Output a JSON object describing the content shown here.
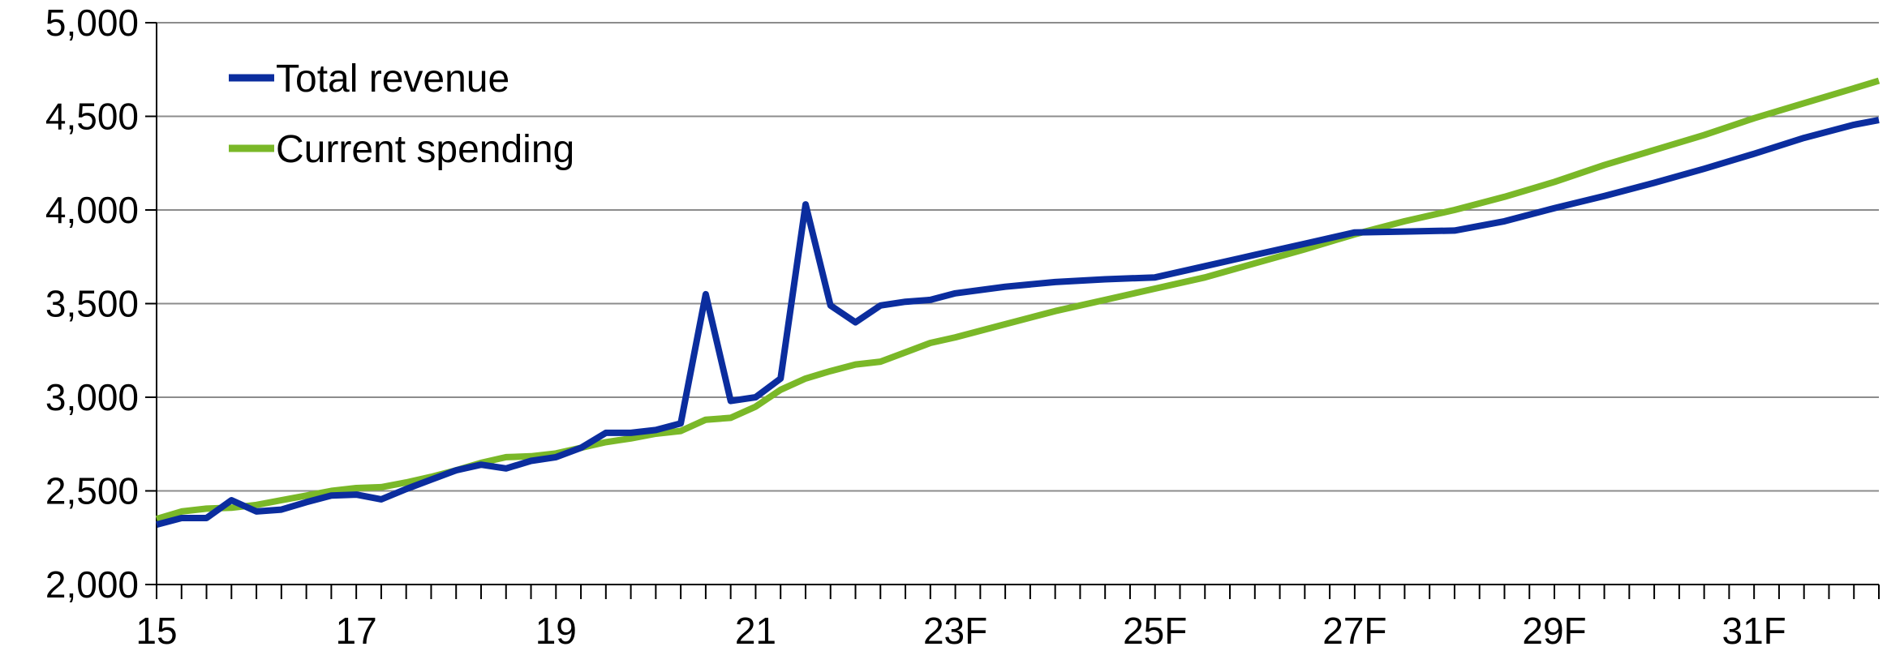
{
  "chart_data": {
    "type": "line",
    "title": "",
    "xlabel": "",
    "ylabel": "",
    "ylim": [
      2000,
      5000
    ],
    "yticks": [
      2000,
      2500,
      3000,
      3500,
      4000,
      4500,
      5000
    ],
    "ytick_labels": [
      "2,000",
      "2,500",
      "3,000",
      "3,500",
      "4,000",
      "4,500",
      "5,000"
    ],
    "xlim": [
      15,
      32.25
    ],
    "xticks": [
      15,
      17,
      19,
      21,
      23,
      25,
      27,
      29,
      31
    ],
    "xtick_labels": [
      "15",
      "17",
      "19",
      "21",
      "23F",
      "25F",
      "27F",
      "29F",
      "31F"
    ],
    "grid": "horizontal",
    "legend_position": "top-left",
    "series": [
      {
        "name": "Total revenue",
        "color": "#0b2d9e",
        "x": [
          15,
          15.25,
          15.5,
          15.75,
          16,
          16.25,
          16.5,
          16.75,
          17,
          17.25,
          17.5,
          17.75,
          18,
          18.25,
          18.5,
          18.75,
          19,
          19.25,
          19.5,
          19.75,
          20,
          20.25,
          20.5,
          20.75,
          21,
          21.25,
          21.5,
          21.75,
          22,
          22.25,
          22.5,
          22.75,
          23,
          23.5,
          24,
          24.5,
          25,
          25.5,
          26,
          26.5,
          27,
          27.5,
          28,
          28.5,
          29,
          29.5,
          30,
          30.5,
          31,
          31.5,
          32,
          32.25
        ],
        "values": [
          2320,
          2355,
          2355,
          2450,
          2390,
          2400,
          2440,
          2475,
          2480,
          2455,
          2510,
          2560,
          2610,
          2640,
          2620,
          2660,
          2680,
          2730,
          2810,
          2810,
          2825,
          2860,
          3550,
          2980,
          3000,
          3100,
          4030,
          3490,
          3400,
          3490,
          3510,
          3520,
          3555,
          3590,
          3615,
          3630,
          3640,
          3700,
          3760,
          3820,
          3880,
          3885,
          3890,
          3940,
          4010,
          4075,
          4145,
          4220,
          4300,
          4385,
          4455,
          4480
        ]
      },
      {
        "name": "Current spending",
        "color": "#7ab828",
        "x": [
          15,
          15.25,
          15.5,
          15.75,
          16,
          16.25,
          16.5,
          16.75,
          17,
          17.25,
          17.5,
          17.75,
          18,
          18.25,
          18.5,
          18.75,
          19,
          19.25,
          19.5,
          19.75,
          20,
          20.25,
          20.5,
          20.75,
          21,
          21.25,
          21.5,
          21.75,
          22,
          22.25,
          22.5,
          22.75,
          23,
          23.5,
          24,
          24.5,
          25,
          25.5,
          26,
          26.5,
          27,
          27.5,
          28,
          28.5,
          29,
          29.5,
          30,
          30.5,
          31,
          31.5,
          32,
          32.25
        ],
        "values": [
          2350,
          2390,
          2405,
          2410,
          2425,
          2450,
          2475,
          2500,
          2515,
          2520,
          2545,
          2575,
          2610,
          2650,
          2680,
          2685,
          2700,
          2730,
          2760,
          2780,
          2805,
          2820,
          2880,
          2890,
          2950,
          3040,
          3100,
          3140,
          3175,
          3190,
          3240,
          3290,
          3320,
          3390,
          3460,
          3520,
          3580,
          3640,
          3715,
          3790,
          3870,
          3940,
          4000,
          4070,
          4150,
          4240,
          4320,
          4400,
          4490,
          4570,
          4650,
          4690
        ]
      }
    ]
  }
}
